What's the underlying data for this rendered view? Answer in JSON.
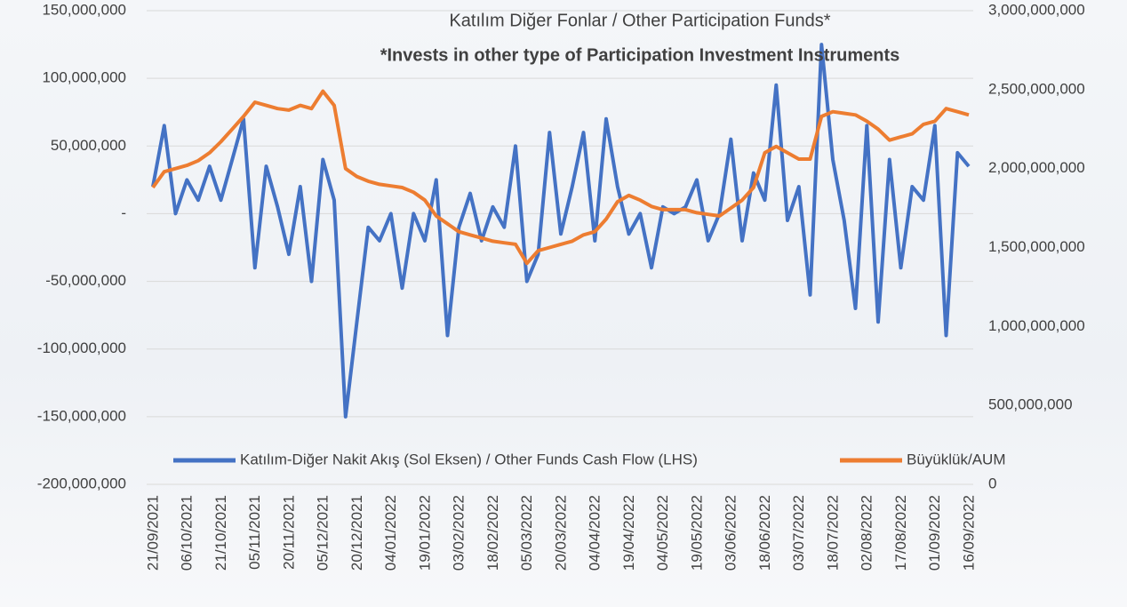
{
  "chart_data": {
    "type": "line",
    "title": "Katılım Diğer Fonlar / Other Participation Funds*",
    "subtitle": "*Invests in other type of Participation Investment Instruments",
    "categories": [
      "21/09/2021",
      null,
      null,
      "06/10/2021",
      null,
      null,
      "21/10/2021",
      null,
      null,
      "05/11/2021",
      null,
      null,
      "20/11/2021",
      null,
      null,
      "05/12/2021",
      null,
      null,
      "20/12/2021",
      null,
      null,
      "04/01/2022",
      null,
      null,
      "19/01/2022",
      null,
      null,
      "03/02/2022",
      null,
      null,
      "18/02/2022",
      null,
      null,
      "05/03/2022",
      null,
      null,
      "20/03/2022",
      null,
      null,
      "04/04/2022",
      null,
      null,
      "19/04/2022",
      null,
      null,
      "04/05/2022",
      null,
      null,
      "19/05/2022",
      null,
      null,
      "03/06/2022",
      null,
      null,
      "18/06/2022",
      null,
      null,
      "03/07/2022",
      null,
      null,
      "18/07/2022",
      null,
      null,
      "02/08/2022",
      null,
      null,
      "17/08/2022",
      null,
      null,
      "01/09/2022",
      null,
      null,
      "16/09/2022"
    ],
    "series": [
      {
        "name": "Katılım-Diğer Nakit Akış (Sol Eksen) / Other Funds Cash Flow (LHS)",
        "color": "#4472c4",
        "axis": "y",
        "values": [
          20000000,
          65000000,
          0,
          25000000,
          10000000,
          35000000,
          10000000,
          40000000,
          70000000,
          -40000000,
          35000000,
          5000000,
          -30000000,
          20000000,
          -50000000,
          40000000,
          10000000,
          -150000000,
          -80000000,
          -10000000,
          -20000000,
          0,
          -55000000,
          0,
          -20000000,
          25000000,
          -90000000,
          -10000000,
          15000000,
          -20000000,
          5000000,
          -10000000,
          50000000,
          -50000000,
          -30000000,
          60000000,
          -15000000,
          20000000,
          60000000,
          -20000000,
          70000000,
          20000000,
          -15000000,
          0,
          -40000000,
          5000000,
          0,
          5000000,
          25000000,
          -20000000,
          0,
          55000000,
          -20000000,
          30000000,
          10000000,
          95000000,
          -5000000,
          20000000,
          -60000000,
          125000000,
          40000000,
          -5000000,
          -70000000,
          65000000,
          -80000000,
          40000000,
          -40000000,
          20000000,
          10000000,
          65000000,
          -90000000,
          45000000,
          35000000
        ]
      },
      {
        "name": "Büyüklük/AUM",
        "color": "#ed7d31",
        "axis": "y2",
        "values": [
          1880000000,
          1980000000,
          2000000000,
          2020000000,
          2050000000,
          2100000000,
          2170000000,
          2250000000,
          2330000000,
          2420000000,
          2400000000,
          2380000000,
          2370000000,
          2400000000,
          2380000000,
          2490000000,
          2400000000,
          2000000000,
          1950000000,
          1920000000,
          1900000000,
          1890000000,
          1880000000,
          1850000000,
          1800000000,
          1700000000,
          1650000000,
          1600000000,
          1580000000,
          1560000000,
          1540000000,
          1530000000,
          1520000000,
          1400000000,
          1480000000,
          1500000000,
          1520000000,
          1540000000,
          1580000000,
          1600000000,
          1680000000,
          1790000000,
          1830000000,
          1800000000,
          1760000000,
          1740000000,
          1740000000,
          1740000000,
          1720000000,
          1710000000,
          1700000000,
          1750000000,
          1800000000,
          1880000000,
          2100000000,
          2140000000,
          2100000000,
          2060000000,
          2060000000,
          2330000000,
          2360000000,
          2350000000,
          2340000000,
          2300000000,
          2250000000,
          2180000000,
          2200000000,
          2220000000,
          2280000000,
          2300000000,
          2380000000,
          2360000000,
          2340000000
        ]
      }
    ],
    "ylim": [
      -200000000,
      150000000
    ],
    "yticks": [
      {
        "value": -200000000,
        "label": "-200,000,000"
      },
      {
        "value": -150000000,
        "label": "-150,000,000"
      },
      {
        "value": -100000000,
        "label": "-100,000,000"
      },
      {
        "value": -50000000,
        "label": "-50,000,000"
      },
      {
        "value": 0,
        "label": "-"
      },
      {
        "value": 50000000,
        "label": "50,000,000"
      },
      {
        "value": 100000000,
        "label": "100,000,000"
      },
      {
        "value": 150000000,
        "label": "150,000,000"
      }
    ],
    "y2lim": [
      0,
      3000000000
    ],
    "y2ticks": [
      0,
      {
        "value": 500000000,
        "label": "500,000,000"
      },
      {
        "value": 1000000000,
        "label": "1,000,000,000"
      },
      {
        "value": 1500000000,
        "label": "1,500,000,000"
      },
      {
        "value": 2000000000,
        "label": "2,000,000,000"
      },
      {
        "value": 2500000000,
        "label": "2,500,000,000"
      },
      {
        "value": 3000000000,
        "label": "3,000,000,000"
      }
    ],
    "grid": true,
    "legend": "bottom"
  }
}
